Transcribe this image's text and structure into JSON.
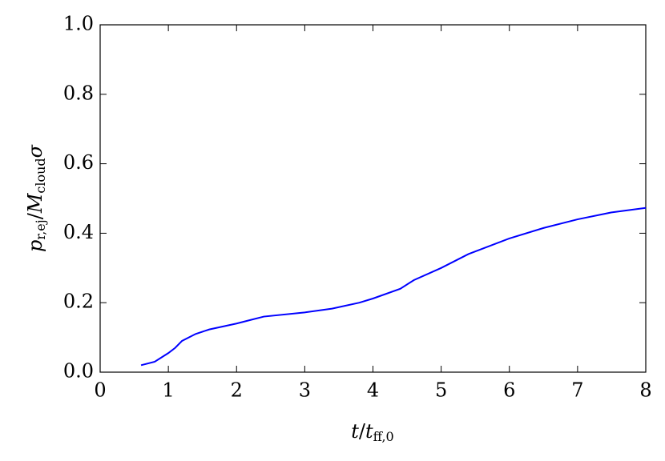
{
  "chart_data": {
    "type": "line",
    "x_label": [
      "t",
      "/",
      "t",
      "ff,0"
    ],
    "y_label": [
      "p",
      "r,ej",
      "/",
      "M",
      "cloud",
      "σ"
    ],
    "series": [
      {
        "color": "#0000ff",
        "x": [
          0.6,
          0.8,
          1.0,
          1.1,
          1.2,
          1.4,
          1.6,
          2.0,
          2.2,
          2.4,
          3.0,
          3.4,
          3.8,
          4.0,
          4.4,
          4.6,
          5.0,
          5.4,
          6.0,
          6.5,
          7.0,
          7.5,
          8.0
        ],
        "values": [
          0.02,
          0.03,
          0.055,
          0.07,
          0.09,
          0.11,
          0.123,
          0.14,
          0.15,
          0.16,
          0.172,
          0.183,
          0.2,
          0.212,
          0.24,
          0.265,
          0.3,
          0.34,
          0.385,
          0.415,
          0.44,
          0.46,
          0.473
        ]
      }
    ],
    "xlim": [
      0,
      8
    ],
    "xticks": [
      0,
      1,
      2,
      3,
      4,
      5,
      6,
      7,
      8
    ],
    "ylim": [
      0,
      1
    ],
    "yticks": [
      {
        "value": 0,
        "label": "0.0"
      },
      {
        "value": 0.2,
        "label": "0.2"
      },
      {
        "value": 0.4,
        "label": "0.4"
      },
      {
        "value": 0.6,
        "label": "0.6"
      },
      {
        "value": 0.8,
        "label": "0.8"
      },
      {
        "value": 1,
        "label": "1.0"
      }
    ],
    "grid": false
  }
}
